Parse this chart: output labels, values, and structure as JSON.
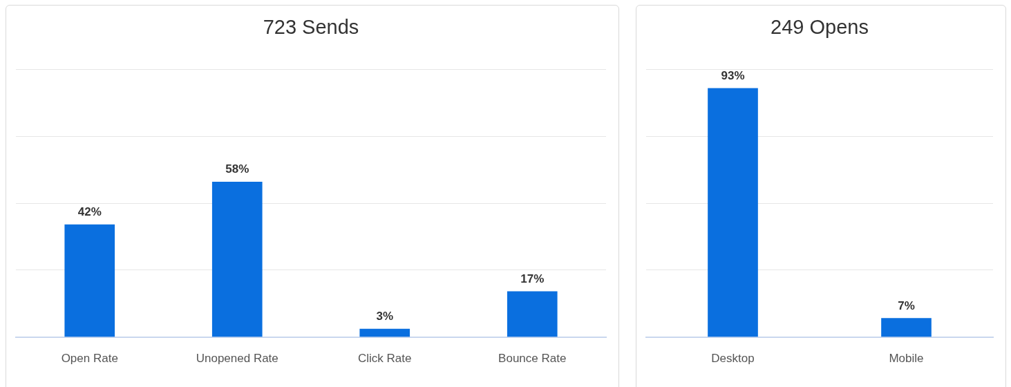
{
  "chart_data": [
    {
      "type": "bar",
      "title": "723 Sends",
      "categories": [
        "Open Rate",
        "Unopened Rate",
        "Click Rate",
        "Bounce Rate"
      ],
      "values": [
        42,
        58,
        3,
        17
      ],
      "value_labels": [
        "42%",
        "58%",
        "3%",
        "17%"
      ],
      "color": "#0a6fdf",
      "ylim": [
        0,
        100
      ],
      "yticks": [
        {
          "value": 0,
          "label": null
        },
        {
          "value": 25,
          "label": null
        },
        {
          "value": 50,
          "label": null
        },
        {
          "value": 75,
          "label": null
        },
        {
          "value": 100,
          "label": null
        }
      ],
      "grid": "y",
      "tick_labels": "x"
    },
    {
      "type": "bar",
      "title": "249 Opens",
      "categories": [
        "Desktop",
        "Mobile"
      ],
      "values": [
        93,
        7
      ],
      "value_labels": [
        "93%",
        "7%"
      ],
      "color": "#0a6fdf",
      "ylim": [
        0,
        100
      ],
      "yticks": [
        {
          "value": 0,
          "label": null
        },
        {
          "value": 25,
          "label": null
        },
        {
          "value": 50,
          "label": null
        },
        {
          "value": 75,
          "label": null
        },
        {
          "value": 100,
          "label": null
        }
      ],
      "grid": "y",
      "tick_labels": "x"
    }
  ]
}
